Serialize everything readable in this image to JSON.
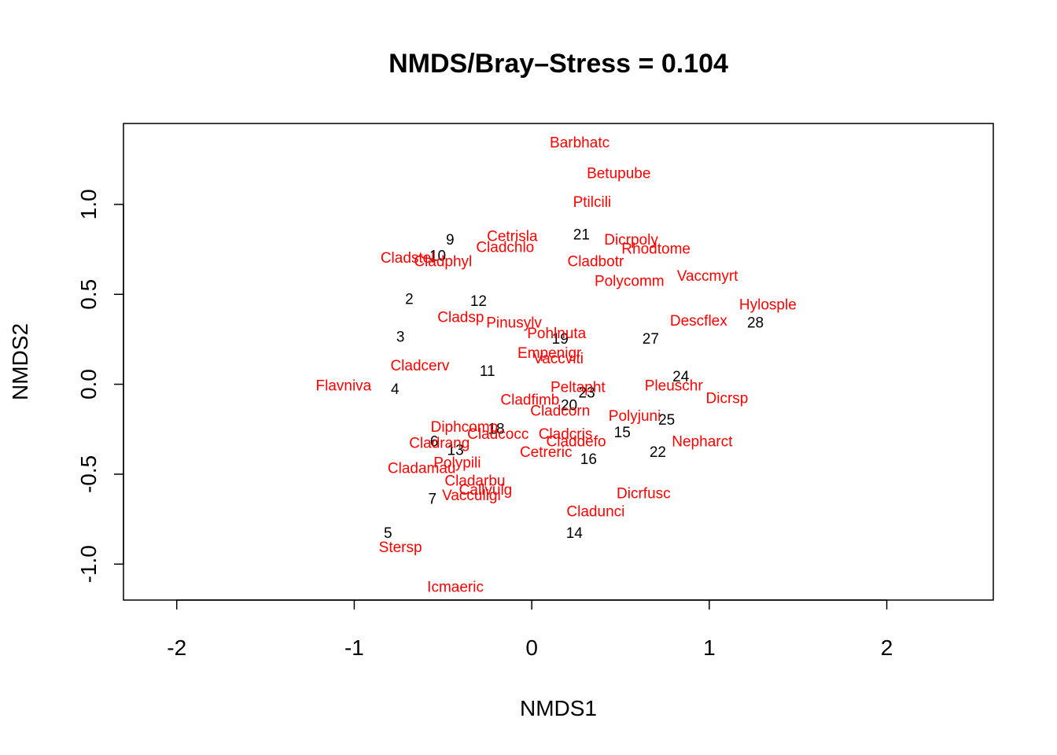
{
  "chart_data": {
    "type": "scatter",
    "title": "NMDS/Bray–Stress = 0.104",
    "xlabel": "NMDS1",
    "ylabel": "NMDS2",
    "xlim": [
      -2.3,
      2.6
    ],
    "ylim": [
      -1.2,
      1.45
    ],
    "xticks": [
      "-2",
      "-1",
      "0",
      "1",
      "2"
    ],
    "xtick_values": [
      -2,
      -1,
      0,
      1,
      2
    ],
    "yticks": [
      "-1.0",
      "-0.5",
      "0.0",
      "0.5",
      "1.0"
    ],
    "ytick_values": [
      -1.0,
      -0.5,
      0.0,
      0.5,
      1.0
    ],
    "grid": false,
    "colors": {
      "sites": "#000000",
      "species": "#ff0000"
    },
    "series": [
      {
        "role": "sites",
        "points": [
          {
            "label": "9",
            "x": -0.46,
            "y": 0.8
          },
          {
            "label": "10",
            "x": -0.53,
            "y": 0.71
          },
          {
            "label": "21",
            "x": 0.28,
            "y": 0.83
          },
          {
            "label": "2",
            "x": -0.69,
            "y": 0.47
          },
          {
            "label": "12",
            "x": -0.3,
            "y": 0.46
          },
          {
            "label": "3",
            "x": -0.74,
            "y": 0.26
          },
          {
            "label": "28",
            "x": 1.26,
            "y": 0.34
          },
          {
            "label": "19",
            "x": 0.16,
            "y": 0.25
          },
          {
            "label": "27",
            "x": 0.67,
            "y": 0.25
          },
          {
            "label": "11",
            "x": -0.25,
            "y": 0.07
          },
          {
            "label": "24",
            "x": 0.84,
            "y": 0.04
          },
          {
            "label": "4",
            "x": -0.77,
            "y": -0.03
          },
          {
            "label": "23",
            "x": 0.31,
            "y": -0.05
          },
          {
            "label": "20",
            "x": 0.21,
            "y": -0.12
          },
          {
            "label": "18",
            "x": -0.2,
            "y": -0.25
          },
          {
            "label": "25",
            "x": 0.76,
            "y": -0.2
          },
          {
            "label": "15",
            "x": 0.51,
            "y": -0.27
          },
          {
            "label": "6",
            "x": -0.55,
            "y": -0.32
          },
          {
            "label": "13",
            "x": -0.43,
            "y": -0.37
          },
          {
            "label": "22",
            "x": 0.71,
            "y": -0.38
          },
          {
            "label": "16",
            "x": 0.32,
            "y": -0.42
          },
          {
            "label": "7",
            "x": -0.56,
            "y": -0.64
          },
          {
            "label": "14",
            "x": 0.24,
            "y": -0.83
          },
          {
            "label": "5",
            "x": -0.81,
            "y": -0.83
          }
        ]
      },
      {
        "role": "species",
        "points": [
          {
            "label": "Barbhatc",
            "x": 0.27,
            "y": 1.34
          },
          {
            "label": "Betupube",
            "x": 0.49,
            "y": 1.17
          },
          {
            "label": "Ptilcili",
            "x": 0.34,
            "y": 1.01
          },
          {
            "label": "Cetrisla",
            "x": -0.11,
            "y": 0.82
          },
          {
            "label": "Dicrpoly",
            "x": 0.56,
            "y": 0.8
          },
          {
            "label": "Cladchlo",
            "x": -0.15,
            "y": 0.76
          },
          {
            "label": "Rhodtome",
            "x": 0.7,
            "y": 0.75
          },
          {
            "label": "Cladstel",
            "x": -0.7,
            "y": 0.7
          },
          {
            "label": "Cladphyl",
            "x": -0.5,
            "y": 0.68
          },
          {
            "label": "Cladbotr",
            "x": 0.36,
            "y": 0.68
          },
          {
            "label": "Vaccmyrt",
            "x": 0.99,
            "y": 0.6
          },
          {
            "label": "Polycomm",
            "x": 0.55,
            "y": 0.57
          },
          {
            "label": "Hylosple",
            "x": 1.33,
            "y": 0.44
          },
          {
            "label": "Descflex",
            "x": 0.94,
            "y": 0.35
          },
          {
            "label": "Cladsp",
            "x": -0.4,
            "y": 0.37
          },
          {
            "label": "Pinusylv",
            "x": -0.1,
            "y": 0.34
          },
          {
            "label": "Pohlnuta",
            "x": 0.14,
            "y": 0.28
          },
          {
            "label": "Empenigr",
            "x": 0.1,
            "y": 0.17
          },
          {
            "label": "Vaccviti",
            "x": 0.15,
            "y": 0.14
          },
          {
            "label": "Cladcerv",
            "x": -0.63,
            "y": 0.1
          },
          {
            "label": "Flavniva",
            "x": -1.06,
            "y": -0.01
          },
          {
            "label": "Peltapht",
            "x": 0.26,
            "y": -0.02
          },
          {
            "label": "Pleuschr",
            "x": 0.8,
            "y": -0.01
          },
          {
            "label": "Dicrsp",
            "x": 1.1,
            "y": -0.08
          },
          {
            "label": "Cladfimb",
            "x": -0.01,
            "y": -0.09
          },
          {
            "label": "Cladcorn",
            "x": 0.16,
            "y": -0.15
          },
          {
            "label": "Polyjuni",
            "x": 0.58,
            "y": -0.18
          },
          {
            "label": "Diphcomp",
            "x": -0.38,
            "y": -0.24
          },
          {
            "label": "Cladcocc",
            "x": -0.19,
            "y": -0.28
          },
          {
            "label": "Cladcris",
            "x": 0.19,
            "y": -0.28
          },
          {
            "label": "Claddefo",
            "x": 0.25,
            "y": -0.32
          },
          {
            "label": "Nepharct",
            "x": 0.96,
            "y": -0.32
          },
          {
            "label": "Cladrang",
            "x": -0.52,
            "y": -0.33
          },
          {
            "label": "Cetreric",
            "x": 0.08,
            "y": -0.38
          },
          {
            "label": "Polypili",
            "x": -0.42,
            "y": -0.44
          },
          {
            "label": "Cladamau",
            "x": -0.62,
            "y": -0.47
          },
          {
            "label": "Cladarbu",
            "x": -0.32,
            "y": -0.54
          },
          {
            "label": "Callvulg",
            "x": -0.26,
            "y": -0.59
          },
          {
            "label": "Vacculigi",
            "x": -0.34,
            "y": -0.62
          },
          {
            "label": "Dicrfusc",
            "x": 0.63,
            "y": -0.61
          },
          {
            "label": "Cladunci",
            "x": 0.36,
            "y": -0.71
          },
          {
            "label": "Stersp",
            "x": -0.74,
            "y": -0.91
          },
          {
            "label": "Icmaeric",
            "x": -0.43,
            "y": -1.13
          }
        ]
      }
    ]
  }
}
